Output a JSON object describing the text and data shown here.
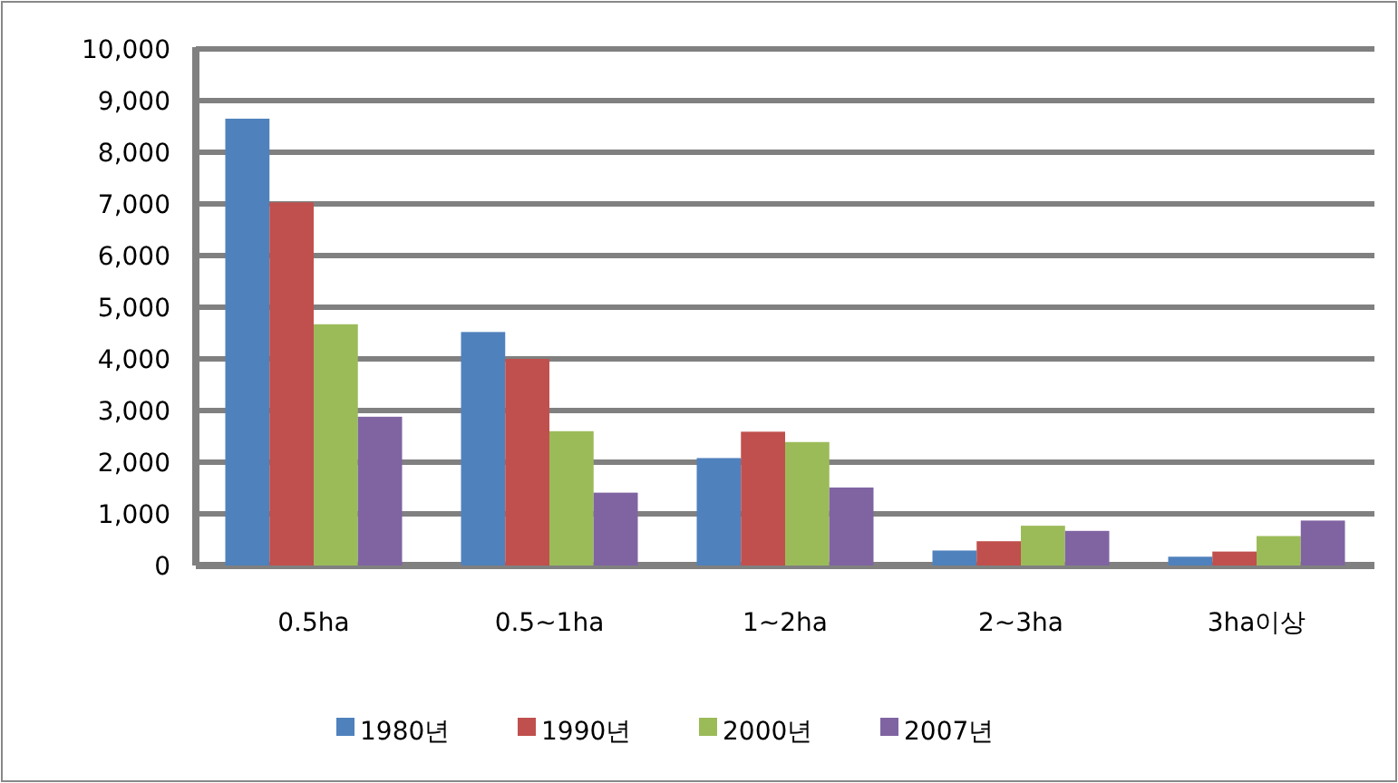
{
  "chart_data": {
    "type": "bar",
    "categories": [
      "0.5ha",
      "0.5~1ha",
      "1~2ha",
      "2~3ha",
      "3ha이상"
    ],
    "series": [
      {
        "name": "1980년",
        "color": "#4f81bd",
        "values": [
          8650,
          4520,
          2080,
          290,
          170
        ]
      },
      {
        "name": "1990년",
        "color": "#c0504d",
        "values": [
          7030,
          4000,
          2590,
          470,
          270
        ]
      },
      {
        "name": "2000년",
        "color": "#9bbb59",
        "values": [
          4670,
          2600,
          2390,
          770,
          570
        ]
      },
      {
        "name": "2007년",
        "color": "#8064a2",
        "values": [
          2880,
          1410,
          1510,
          670,
          870
        ]
      }
    ],
    "ylim": [
      0,
      10000
    ],
    "yticks": [
      0,
      {
        "value": 1000,
        "label": "1,000"
      },
      {
        "value": 2000,
        "label": "2,000"
      },
      {
        "value": 3000,
        "label": "3,000"
      },
      {
        "value": 4000,
        "label": "4,000"
      },
      {
        "value": 5000,
        "label": "5,000"
      },
      {
        "value": 6000,
        "label": "6,000"
      },
      {
        "value": 7000,
        "label": "7,000"
      },
      {
        "value": 8000,
        "label": "8,000"
      },
      {
        "value": 9000,
        "label": "9,000"
      },
      {
        "value": 10000,
        "label": "10,000"
      }
    ],
    "grid": "y",
    "legend": "bottom"
  }
}
